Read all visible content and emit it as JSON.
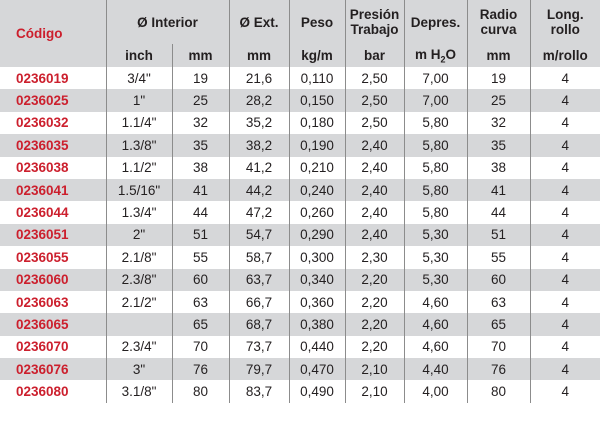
{
  "headers": {
    "codigo": "Código",
    "interior": "Ø Interior",
    "ext": "Ø Ext.",
    "peso": "Peso",
    "presion_l1": "Presión",
    "presion_l2": "Trabajo",
    "depres": "Depres.",
    "radio_l1": "Radio",
    "radio_l2": "curva",
    "long_l1": "Long.",
    "long_l2": "rollo"
  },
  "units": {
    "inch": "inch",
    "mm_int": "mm",
    "mm_ext": "mm",
    "kgm": "kg/m",
    "bar": "bar",
    "mh2o_pre": "m H",
    "mh2o_sub": "2",
    "mh2o_post": "O",
    "mm_radio": "mm",
    "mrollo": "m/rollo"
  },
  "rows": [
    {
      "code": "0236019",
      "inch": "3/4\"",
      "mm": "19",
      "ext": "21,6",
      "peso": "0,110",
      "bar": "2,50",
      "depres": "7,00",
      "radio": "19",
      "long": "4"
    },
    {
      "code": "0236025",
      "inch": "1\"",
      "mm": "25",
      "ext": "28,2",
      "peso": "0,150",
      "bar": "2,50",
      "depres": "7,00",
      "radio": "25",
      "long": "4"
    },
    {
      "code": "0236032",
      "inch": "1.1/4\"",
      "mm": "32",
      "ext": "35,2",
      "peso": "0,180",
      "bar": "2,50",
      "depres": "5,80",
      "radio": "32",
      "long": "4"
    },
    {
      "code": "0236035",
      "inch": "1.3/8\"",
      "mm": "35",
      "ext": "38,2",
      "peso": "0,190",
      "bar": "2,40",
      "depres": "5,80",
      "radio": "35",
      "long": "4"
    },
    {
      "code": "0236038",
      "inch": "1.1/2\"",
      "mm": "38",
      "ext": "41,2",
      "peso": "0,210",
      "bar": "2,40",
      "depres": "5,80",
      "radio": "38",
      "long": "4"
    },
    {
      "code": "0236041",
      "inch": "1.5/16\"",
      "mm": "41",
      "ext": "44,2",
      "peso": "0,240",
      "bar": "2,40",
      "depres": "5,80",
      "radio": "41",
      "long": "4"
    },
    {
      "code": "0236044",
      "inch": "1.3/4\"",
      "mm": "44",
      "ext": "47,2",
      "peso": "0,260",
      "bar": "2,40",
      "depres": "5,80",
      "radio": "44",
      "long": "4"
    },
    {
      "code": "0236051",
      "inch": "2\"",
      "mm": "51",
      "ext": "54,7",
      "peso": "0,290",
      "bar": "2,40",
      "depres": "5,30",
      "radio": "51",
      "long": "4"
    },
    {
      "code": "0236055",
      "inch": "2.1/8\"",
      "mm": "55",
      "ext": "58,7",
      "peso": "0,300",
      "bar": "2,30",
      "depres": "5,30",
      "radio": "55",
      "long": "4"
    },
    {
      "code": "0236060",
      "inch": "2.3/8\"",
      "mm": "60",
      "ext": "63,7",
      "peso": "0,340",
      "bar": "2,20",
      "depres": "5,30",
      "radio": "60",
      "long": "4"
    },
    {
      "code": "0236063",
      "inch": "2.1/2\"",
      "mm": "63",
      "ext": "66,7",
      "peso": "0,360",
      "bar": "2,20",
      "depres": "4,60",
      "radio": "63",
      "long": "4"
    },
    {
      "code": "0236065",
      "inch": "",
      "mm": "65",
      "ext": "68,7",
      "peso": "0,380",
      "bar": "2,20",
      "depres": "4,60",
      "radio": "65",
      "long": "4"
    },
    {
      "code": "0236070",
      "inch": "2.3/4\"",
      "mm": "70",
      "ext": "73,7",
      "peso": "0,440",
      "bar": "2,20",
      "depres": "4,60",
      "radio": "70",
      "long": "4"
    },
    {
      "code": "0236076",
      "inch": "3\"",
      "mm": "76",
      "ext": "79,7",
      "peso": "0,470",
      "bar": "2,10",
      "depres": "4,40",
      "radio": "76",
      "long": "4"
    },
    {
      "code": "0236080",
      "inch": "3.1/8\"",
      "mm": "80",
      "ext": "83,7",
      "peso": "0,490",
      "bar": "2,10",
      "depres": "4,00",
      "radio": "80",
      "long": "4"
    }
  ]
}
